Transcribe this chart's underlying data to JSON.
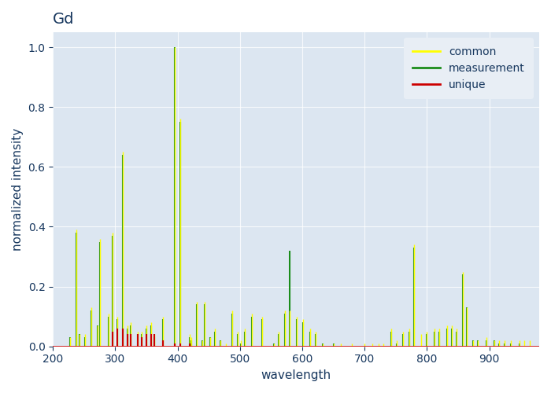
{
  "title": "Gd",
  "xlabel": "wavelength",
  "ylabel": "normalized intensity",
  "xlim": [
    200,
    980
  ],
  "ylim": [
    0,
    1.05
  ],
  "plot_bg": "#dce6f1",
  "figure_bg": "#ffffff",
  "title_color": "#17375e",
  "grid_color": "#ffffff",
  "common_color": "#ffff00",
  "measurement_color": "#1a8c1a",
  "unique_color": "#cc0000",
  "common_lines": [
    [
      228,
      0.03
    ],
    [
      237,
      0.39
    ],
    [
      243,
      0.04
    ],
    [
      252,
      0.04
    ],
    [
      261,
      0.13
    ],
    [
      272,
      0.07
    ],
    [
      276,
      0.36
    ],
    [
      289,
      0.11
    ],
    [
      295,
      0.38
    ],
    [
      303,
      0.1
    ],
    [
      312,
      0.65
    ],
    [
      319,
      0.07
    ],
    [
      325,
      0.08
    ],
    [
      336,
      0.05
    ],
    [
      342,
      0.05
    ],
    [
      350,
      0.07
    ],
    [
      358,
      0.08
    ],
    [
      362,
      0.04
    ],
    [
      376,
      0.1
    ],
    [
      395,
      1.0
    ],
    [
      404,
      0.76
    ],
    [
      419,
      0.04
    ],
    [
      422,
      0.03
    ],
    [
      431,
      0.15
    ],
    [
      440,
      0.02
    ],
    [
      443,
      0.15
    ],
    [
      452,
      0.03
    ],
    [
      460,
      0.06
    ],
    [
      468,
      0.02
    ],
    [
      478,
      0.01
    ],
    [
      487,
      0.12
    ],
    [
      496,
      0.05
    ],
    [
      502,
      0.02
    ],
    [
      508,
      0.06
    ],
    [
      519,
      0.11
    ],
    [
      536,
      0.1
    ],
    [
      554,
      0.01
    ],
    [
      562,
      0.05
    ],
    [
      572,
      0.12
    ],
    [
      580,
      0.12
    ],
    [
      591,
      0.1
    ],
    [
      601,
      0.09
    ],
    [
      612,
      0.06
    ],
    [
      622,
      0.05
    ],
    [
      633,
      0.01
    ],
    [
      650,
      0.01
    ],
    [
      662,
      0.01
    ],
    [
      680,
      0.01
    ],
    [
      700,
      0.01
    ],
    [
      712,
      0.01
    ],
    [
      722,
      0.01
    ],
    [
      730,
      0.01
    ],
    [
      742,
      0.06
    ],
    [
      752,
      0.02
    ],
    [
      762,
      0.05
    ],
    [
      772,
      0.06
    ],
    [
      779,
      0.34
    ],
    [
      790,
      0.04
    ],
    [
      800,
      0.05
    ],
    [
      812,
      0.06
    ],
    [
      820,
      0.06
    ],
    [
      832,
      0.07
    ],
    [
      840,
      0.07
    ],
    [
      848,
      0.06
    ],
    [
      858,
      0.25
    ],
    [
      864,
      0.13
    ],
    [
      874,
      0.02
    ],
    [
      882,
      0.02
    ],
    [
      895,
      0.03
    ],
    [
      908,
      0.02
    ],
    [
      916,
      0.02
    ],
    [
      924,
      0.02
    ],
    [
      935,
      0.02
    ],
    [
      948,
      0.02
    ],
    [
      956,
      0.02
    ],
    [
      965,
      0.02
    ]
  ],
  "measurement_lines": [
    [
      228,
      0.03
    ],
    [
      237,
      0.38
    ],
    [
      243,
      0.04
    ],
    [
      252,
      0.03
    ],
    [
      261,
      0.12
    ],
    [
      272,
      0.07
    ],
    [
      276,
      0.35
    ],
    [
      289,
      0.1
    ],
    [
      295,
      0.37
    ],
    [
      303,
      0.09
    ],
    [
      312,
      0.64
    ],
    [
      319,
      0.06
    ],
    [
      325,
      0.07
    ],
    [
      336,
      0.04
    ],
    [
      342,
      0.04
    ],
    [
      350,
      0.06
    ],
    [
      358,
      0.07
    ],
    [
      362,
      0.03
    ],
    [
      376,
      0.09
    ],
    [
      395,
      1.0
    ],
    [
      404,
      0.75
    ],
    [
      419,
      0.03
    ],
    [
      422,
      0.02
    ],
    [
      431,
      0.14
    ],
    [
      440,
      0.02
    ],
    [
      443,
      0.14
    ],
    [
      452,
      0.03
    ],
    [
      460,
      0.05
    ],
    [
      468,
      0.02
    ],
    [
      487,
      0.11
    ],
    [
      496,
      0.04
    ],
    [
      502,
      0.01
    ],
    [
      508,
      0.05
    ],
    [
      519,
      0.1
    ],
    [
      536,
      0.09
    ],
    [
      554,
      0.01
    ],
    [
      562,
      0.04
    ],
    [
      572,
      0.11
    ],
    [
      580,
      0.32
    ],
    [
      591,
      0.09
    ],
    [
      601,
      0.08
    ],
    [
      612,
      0.05
    ],
    [
      622,
      0.04
    ],
    [
      633,
      0.01
    ],
    [
      650,
      0.01
    ],
    [
      742,
      0.05
    ],
    [
      752,
      0.01
    ],
    [
      762,
      0.04
    ],
    [
      772,
      0.05
    ],
    [
      779,
      0.33
    ],
    [
      800,
      0.04
    ],
    [
      812,
      0.05
    ],
    [
      820,
      0.05
    ],
    [
      832,
      0.06
    ],
    [
      840,
      0.06
    ],
    [
      848,
      0.05
    ],
    [
      858,
      0.24
    ],
    [
      864,
      0.13
    ],
    [
      874,
      0.02
    ],
    [
      882,
      0.02
    ],
    [
      895,
      0.02
    ],
    [
      908,
      0.02
    ],
    [
      916,
      0.01
    ],
    [
      924,
      0.01
    ],
    [
      935,
      0.01
    ],
    [
      948,
      0.01
    ]
  ],
  "unique_lines": [
    [
      295,
      0.05
    ],
    [
      303,
      0.06
    ],
    [
      312,
      0.06
    ],
    [
      319,
      0.04
    ],
    [
      325,
      0.04
    ],
    [
      336,
      0.04
    ],
    [
      342,
      0.03
    ],
    [
      350,
      0.04
    ],
    [
      358,
      0.04
    ],
    [
      362,
      0.04
    ],
    [
      376,
      0.02
    ],
    [
      395,
      0.01
    ],
    [
      404,
      0.01
    ],
    [
      419,
      0.01
    ]
  ]
}
